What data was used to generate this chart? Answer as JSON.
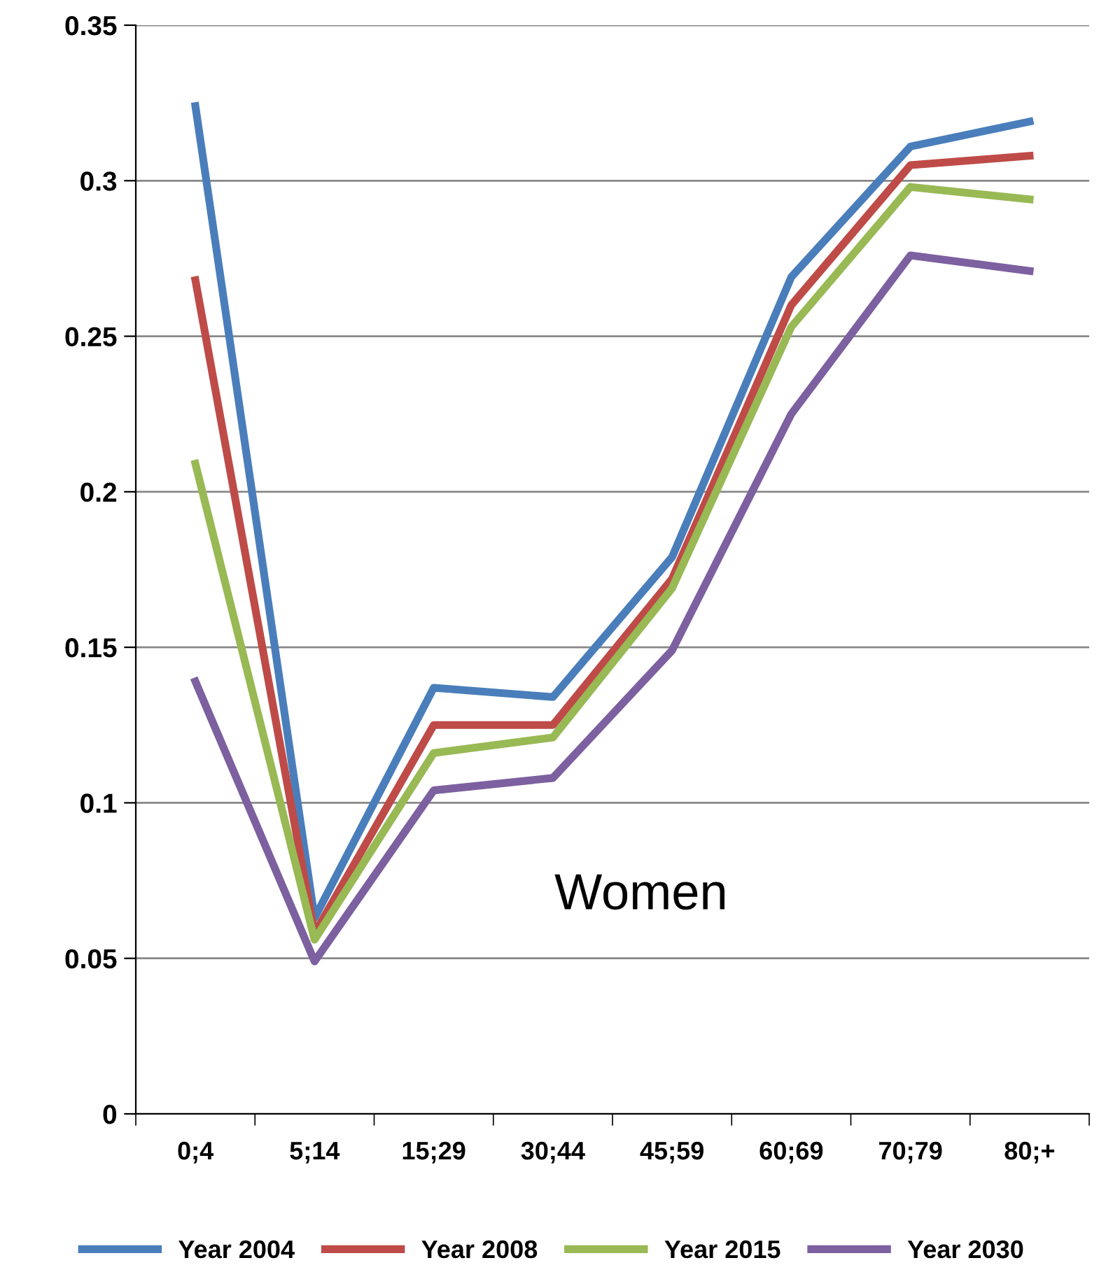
{
  "chart_data": {
    "type": "line",
    "categories": [
      "0;4",
      "5;14",
      "15;29",
      "30;44",
      "45;59",
      "60;69",
      "70;79",
      "80;+"
    ],
    "series": [
      {
        "name": "Year 2004",
        "color": "#4a7ebb",
        "values": [
          0.324,
          0.063,
          0.137,
          0.134,
          0.179,
          0.269,
          0.311,
          0.319
        ]
      },
      {
        "name": "Year 2008",
        "color": "#be4b48",
        "values": [
          0.268,
          0.058,
          0.125,
          0.125,
          0.172,
          0.26,
          0.305,
          0.308
        ]
      },
      {
        "name": "Year 2015",
        "color": "#98b954",
        "values": [
          0.209,
          0.056,
          0.116,
          0.121,
          0.169,
          0.253,
          0.298,
          0.294
        ]
      },
      {
        "name": "Year 2030",
        "color": "#7d60a0",
        "values": [
          0.139,
          0.049,
          0.104,
          0.108,
          0.149,
          0.225,
          0.276,
          0.271
        ]
      }
    ],
    "ylim": [
      0,
      0.35
    ],
    "yticks": [
      {
        "value": 0,
        "label": "0"
      },
      0.05,
      0.1,
      0.15,
      0.2,
      0.25,
      0.3,
      0.35
    ],
    "grid": "y",
    "legend": "bottom",
    "marker": "none",
    "line_style": "solid",
    "annotations": [
      "Women"
    ]
  }
}
